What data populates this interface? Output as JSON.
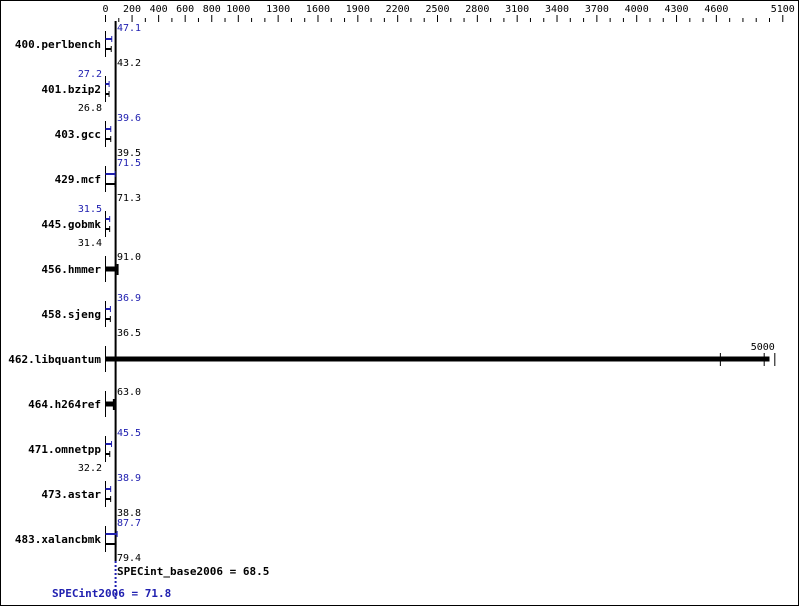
{
  "chart_data": {
    "type": "bar",
    "orientation": "horizontal",
    "axis_position": "top",
    "xlim": [
      0,
      5100
    ],
    "tick_labels": [
      "0",
      "200",
      "400",
      "600",
      "800",
      "1000",
      "1300",
      "1600",
      "1900",
      "2200",
      "2500",
      "2800",
      "3100",
      "3400",
      "3700",
      "4000",
      "4300",
      "4600",
      "5100"
    ],
    "categories": [
      "400.perlbench",
      "401.bzip2",
      "403.gcc",
      "429.mcf",
      "445.gobmk",
      "456.hmmer",
      "458.sjeng",
      "462.libquantum",
      "464.h264ref",
      "471.omnetpp",
      "473.astar",
      "483.xalancbmk"
    ],
    "series": [
      {
        "name": "SPECint_base2006",
        "color": "#000000",
        "values": [
          43.2,
          26.8,
          39.5,
          71.3,
          31.4,
          91.0,
          36.5,
          5000,
          63.0,
          32.2,
          38.8,
          79.4
        ],
        "labels": [
          "43.2",
          "26.8",
          "39.5",
          "71.3",
          "31.4",
          "91.0",
          "36.5",
          "5000",
          "63.0",
          "32.2",
          "38.8",
          "79.4"
        ]
      },
      {
        "name": "SPECint2006",
        "color": "#2020b0",
        "values": [
          47.1,
          27.2,
          39.6,
          71.5,
          31.5,
          null,
          36.9,
          null,
          null,
          45.5,
          38.9,
          87.7
        ],
        "labels": [
          "47.1",
          "27.2",
          "39.6",
          "71.5",
          "31.5",
          null,
          "36.9",
          null,
          null,
          "45.5",
          "38.9",
          "87.7"
        ]
      }
    ],
    "means": {
      "base_label": "SPECint_base2006 = 68.5",
      "base_value": 68.5,
      "peak_label": "SPECint2006 = 71.8",
      "peak_value": 71.8
    }
  }
}
